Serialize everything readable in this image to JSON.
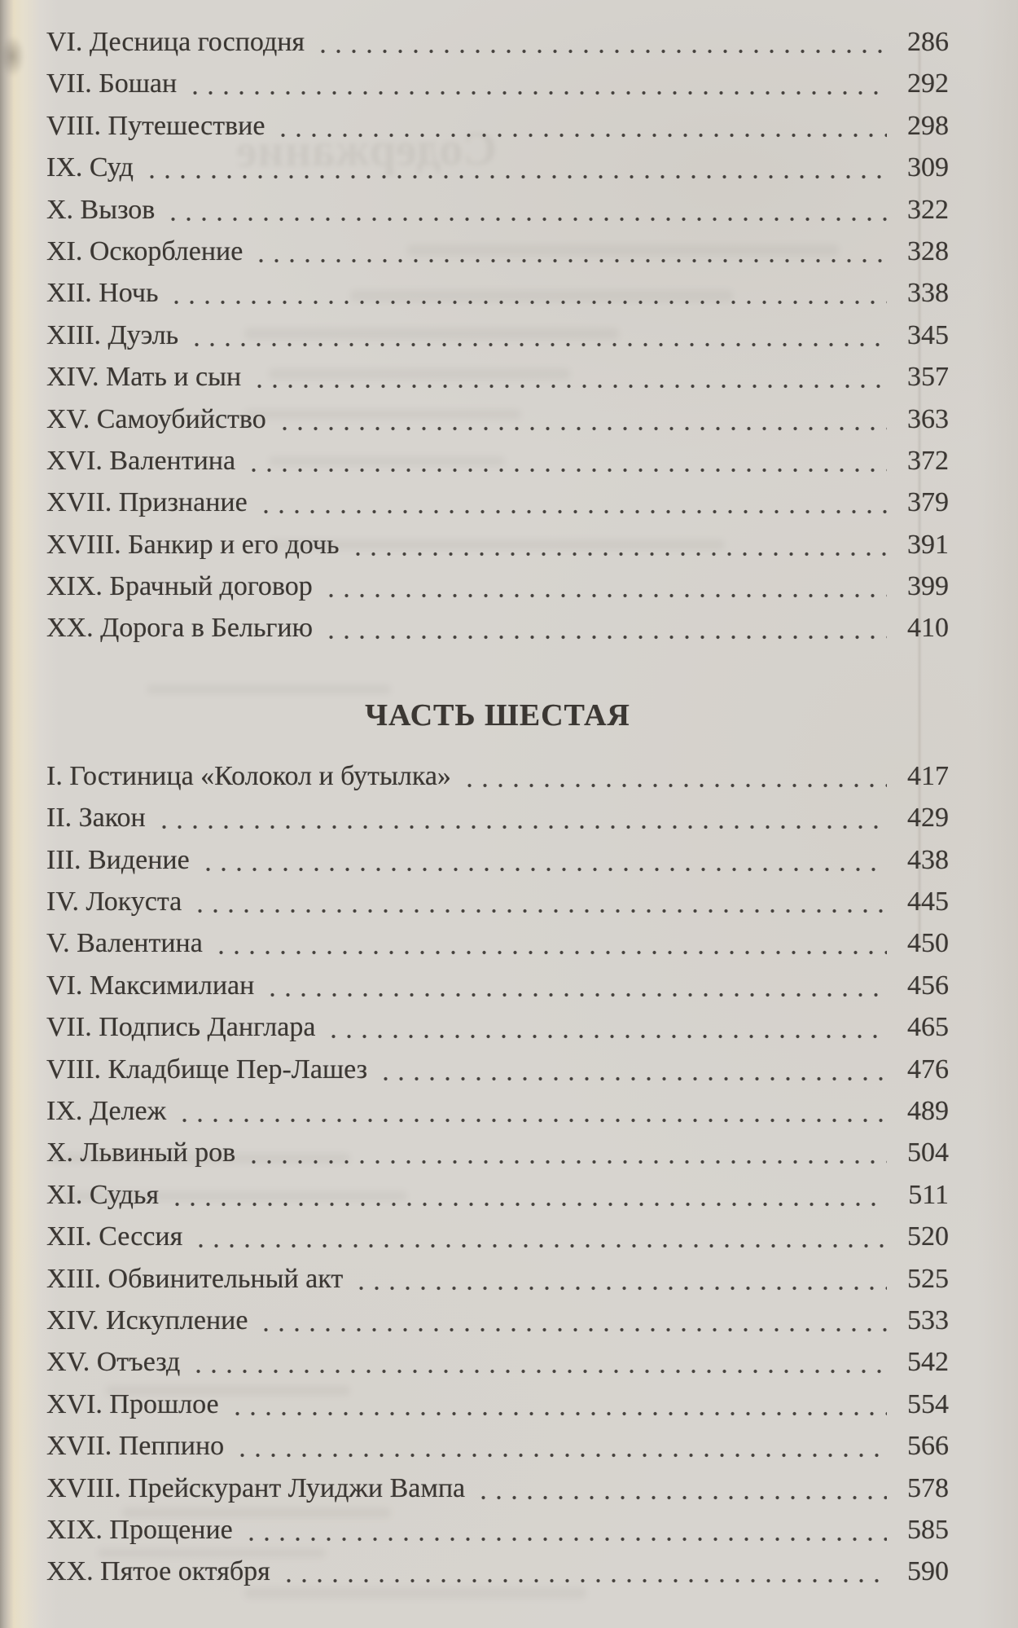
{
  "colors": {
    "paper": "#d7d4cf",
    "ink": "#3b3733",
    "leader_dots": "#45413d"
  },
  "ghost_text": "Содержание",
  "toc": {
    "part5_items": [
      {
        "label": "VI. Десница господня",
        "page": "286"
      },
      {
        "label": "VII. Бошан",
        "page": "292"
      },
      {
        "label": "VIII. Путешествие",
        "page": "298"
      },
      {
        "label": "IX. Суд",
        "page": "309"
      },
      {
        "label": "X. Вызов",
        "page": "322"
      },
      {
        "label": "XI. Оскорбление",
        "page": "328"
      },
      {
        "label": "XII. Ночь",
        "page": "338"
      },
      {
        "label": "XIII. Дуэль",
        "page": "345"
      },
      {
        "label": "XIV. Мать и сын",
        "page": "357"
      },
      {
        "label": "XV. Самоубийство",
        "page": "363"
      },
      {
        "label": "XVI. Валентина",
        "page": "372"
      },
      {
        "label": "XVII. Признание",
        "page": "379"
      },
      {
        "label": "XVIII. Банкир и его дочь",
        "page": "391"
      },
      {
        "label": "XIX. Брачный договор",
        "page": "399"
      },
      {
        "label": "XX. Дорога в Бельгию",
        "page": "410"
      }
    ],
    "part6_heading": "ЧАСТЬ ШЕСТАЯ",
    "part6_items": [
      {
        "label": "I. Гостиница «Колокол и бутылка»",
        "page": "417"
      },
      {
        "label": "II. Закон",
        "page": "429"
      },
      {
        "label": "III. Видение",
        "page": "438"
      },
      {
        "label": "IV. Локуста",
        "page": "445"
      },
      {
        "label": "V. Валентина",
        "page": "450"
      },
      {
        "label": "VI. Максимилиан",
        "page": "456"
      },
      {
        "label": "VII. Подпись Данглара",
        "page": "465"
      },
      {
        "label": "VIII. Кладбище Пер-Лашез",
        "page": "476"
      },
      {
        "label": "IX. Дележ",
        "page": "489"
      },
      {
        "label": "X. Львиный ров",
        "page": "504"
      },
      {
        "label": "XI. Судья",
        "page": "511"
      },
      {
        "label": "XII. Сессия",
        "page": "520"
      },
      {
        "label": "XIII. Обвинительный акт",
        "page": "525"
      },
      {
        "label": "XIV. Искупление",
        "page": "533"
      },
      {
        "label": "XV. Отъезд",
        "page": "542"
      },
      {
        "label": "XVI. Прошлое",
        "page": "554"
      },
      {
        "label": "XVII. Пеппино",
        "page": "566"
      },
      {
        "label": "XVIII. Прейскурант Луиджи Вампа",
        "page": "578"
      },
      {
        "label": "XIX. Прощение",
        "page": "585"
      },
      {
        "label": "XX. Пятое октября",
        "page": "590"
      }
    ]
  }
}
